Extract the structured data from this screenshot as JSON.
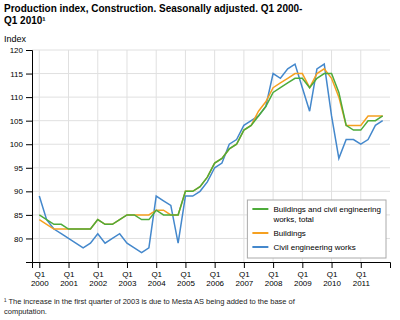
{
  "chart_data": {
    "type": "line",
    "title": "Production index, Construction. Seasonally adjusted. Q1 2000-\nQ1 2010¹",
    "y_label": "Index",
    "annotations": [
      "¹ The increase in the first quarter of 2003 is due to Mesta AS being added to the base of\ncomputation."
    ],
    "categories": [
      "Q1\n2000",
      null,
      null,
      null,
      "Q1\n2001",
      null,
      null,
      null,
      "Q1\n2002",
      null,
      null,
      null,
      "Q1\n2003",
      null,
      null,
      null,
      "Q1\n2004",
      null,
      null,
      null,
      "Q1\n2005",
      null,
      null,
      null,
      "Q1\n2006",
      null,
      null,
      null,
      "Q1\n2007",
      null,
      null,
      null,
      "Q1\n2008",
      null,
      null,
      null,
      "Q1\n2009",
      null,
      null,
      null,
      "Q1\n2010",
      null,
      null,
      null,
      "Q1\n2011",
      null,
      null,
      null
    ],
    "series": [
      {
        "name": "Buildings and civil engineering\nworks, total",
        "color": "#4dab3a",
        "values": [
          85,
          84,
          83,
          83,
          82,
          82,
          82,
          82,
          84,
          83,
          83,
          84,
          85,
          85,
          84,
          84,
          86,
          85,
          85,
          85,
          90,
          90,
          91,
          93,
          96,
          97,
          99,
          100,
          103,
          104,
          106,
          108,
          111,
          112,
          113,
          114,
          114,
          112,
          114,
          115,
          115,
          111,
          104,
          103,
          103,
          105,
          105,
          106
        ]
      },
      {
        "name": "Buildings",
        "color": "#f5a020",
        "values": [
          84,
          83,
          82,
          82,
          82,
          82,
          82,
          82,
          84,
          83,
          83,
          84,
          85,
          85,
          85,
          85,
          86,
          86,
          85,
          85,
          90,
          90,
          91,
          93,
          96,
          97,
          99,
          100,
          103,
          104,
          107,
          109,
          112,
          113,
          114,
          115,
          115,
          112,
          115,
          116,
          114,
          110,
          104,
          104,
          104,
          106,
          106,
          106
        ]
      },
      {
        "name": "Civil engineering works",
        "color": "#4488cc",
        "values": [
          89,
          84,
          82,
          81,
          80,
          79,
          78,
          79,
          81,
          79,
          80,
          81,
          79,
          78,
          77,
          78,
          89,
          88,
          87,
          79,
          89,
          89,
          90,
          92,
          95,
          96,
          100,
          101,
          104,
          105,
          106,
          108,
          115,
          114,
          116,
          117,
          112,
          107,
          116,
          117,
          106,
          97,
          101,
          101,
          100,
          101,
          104,
          105
        ]
      }
    ],
    "ylim": [
      75,
      120
    ],
    "yticks": [
      80,
      85,
      90,
      95,
      100,
      105,
      110,
      115,
      120
    ],
    "grid": true,
    "legend": "bottom-right"
  }
}
